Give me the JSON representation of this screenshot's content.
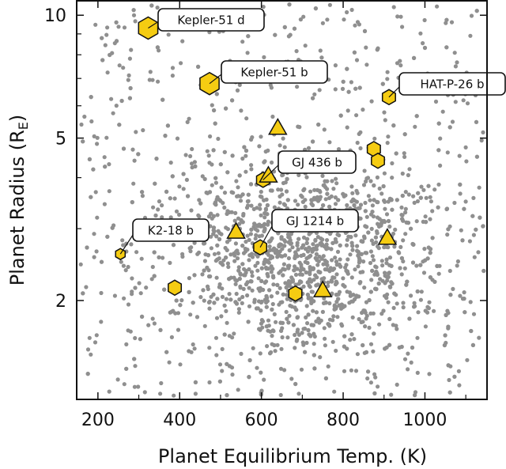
{
  "chart_data": {
    "type": "scatter",
    "xlabel": "Planet Equilibrium Temp. (K)",
    "ylabel_main": "Planet Radius (R",
    "ylabel_sub": "E",
    "ylabel_close": ")",
    "xlim": [
      150,
      1150
    ],
    "ylim": [
      1.15,
      10.8
    ],
    "yscale": "log",
    "xticks": [
      200,
      400,
      600,
      800,
      1000
    ],
    "xtick_labels": [
      "200",
      "400",
      "600",
      "800",
      "1000"
    ],
    "yticks": [
      2,
      5,
      10
    ],
    "ytick_labels": [
      "2",
      "5",
      "10"
    ],
    "grid": false,
    "background_colors": {
      "dots": "#8f8f8f",
      "highlight": "#f5cc12",
      "outline": "#111111"
    },
    "background_population_note": "dense cloud of grey points concentrated near 500-800 K and 2-3 R_E",
    "hexagons": [
      {
        "label": "Kepler-51 d",
        "x": 323,
        "y": 9.3,
        "size": "large"
      },
      {
        "label": "Kepler-51 b",
        "x": 473,
        "y": 6.8,
        "size": "large"
      },
      {
        "label": "HAT-P-26 b",
        "x": 912,
        "y": 6.3,
        "size": "medium"
      },
      {
        "label": "",
        "x": 875,
        "y": 4.7,
        "size": "medium"
      },
      {
        "label": "",
        "x": 885,
        "y": 4.4,
        "size": "medium"
      },
      {
        "label": "GJ 436 b",
        "x": 604,
        "y": 3.95,
        "size": "medium"
      },
      {
        "label": "GJ 1214 b",
        "x": 597,
        "y": 2.7,
        "size": "medium"
      },
      {
        "label": "K2-18 b",
        "x": 255,
        "y": 2.6,
        "size": "small"
      },
      {
        "label": "",
        "x": 388,
        "y": 2.15,
        "size": "medium"
      },
      {
        "label": "",
        "x": 683,
        "y": 2.08,
        "size": "medium"
      }
    ],
    "triangles": [
      {
        "x": 640,
        "y": 5.3
      },
      {
        "x": 617,
        "y": 4.05
      },
      {
        "x": 538,
        "y": 2.95
      },
      {
        "x": 908,
        "y": 2.85
      },
      {
        "x": 750,
        "y": 2.12
      }
    ],
    "callouts": [
      {
        "text": "Kepler-51 d",
        "target": "Kepler-51 d"
      },
      {
        "text": "Kepler-51 b",
        "target": "Kepler-51 b"
      },
      {
        "text": "HAT-P-26 b",
        "target": "HAT-P-26 b"
      },
      {
        "text": "GJ 436 b",
        "target": "GJ 436 b"
      },
      {
        "text": "GJ 1214 b",
        "target": "GJ 1214 b"
      },
      {
        "text": "K2-18 b",
        "target": "K2-18 b"
      }
    ]
  }
}
